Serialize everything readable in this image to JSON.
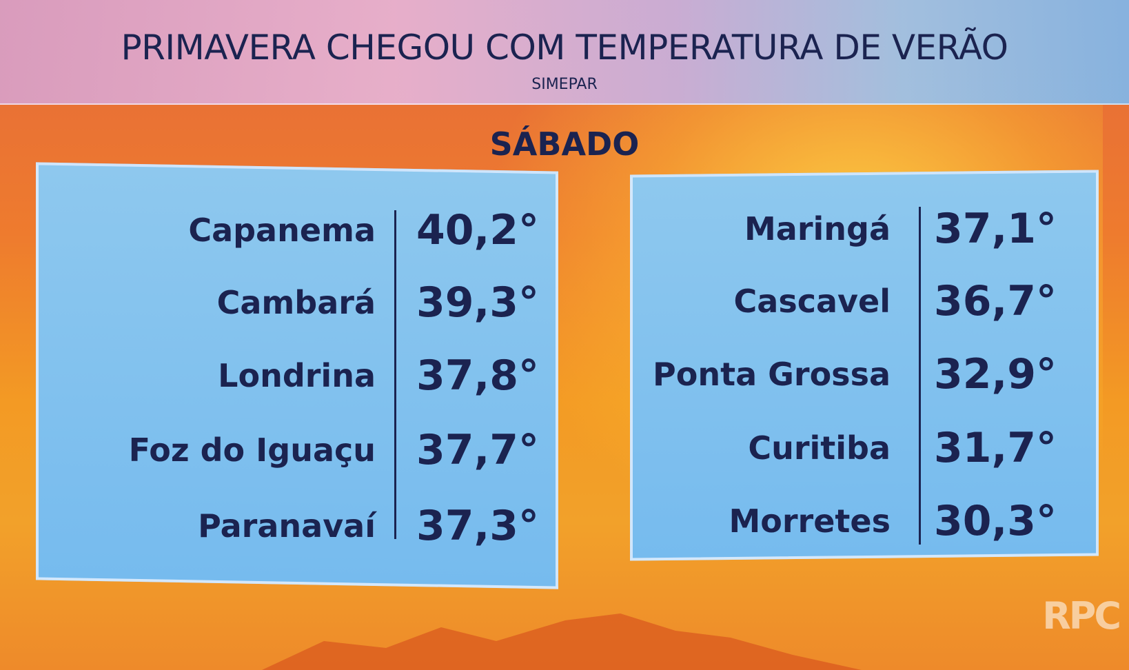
{
  "header": {
    "title": "PRIMAVERA CHEGOU COM TEMPERATURA DE VERÃO",
    "source": "SIMEPAR"
  },
  "day": "SÁBADO",
  "tables": {
    "left": {
      "rows": [
        [
          "Capanema",
          "40,2°"
        ],
        [
          "Cambará",
          "39,3°"
        ],
        [
          "Londrina",
          "37,8°"
        ],
        [
          "Foz do Iguaçu",
          "37,7°"
        ],
        [
          "Paranavaí",
          "37,3°"
        ]
      ]
    },
    "right": {
      "rows": [
        [
          "Maringá",
          "37,1°"
        ],
        [
          "Cascavel",
          "36,7°"
        ],
        [
          "Ponta Grossa",
          "32,9°"
        ],
        [
          "Curitiba",
          "31,7°"
        ],
        [
          "Morretes",
          "30,3°"
        ]
      ]
    }
  },
  "logo": "RPC"
}
